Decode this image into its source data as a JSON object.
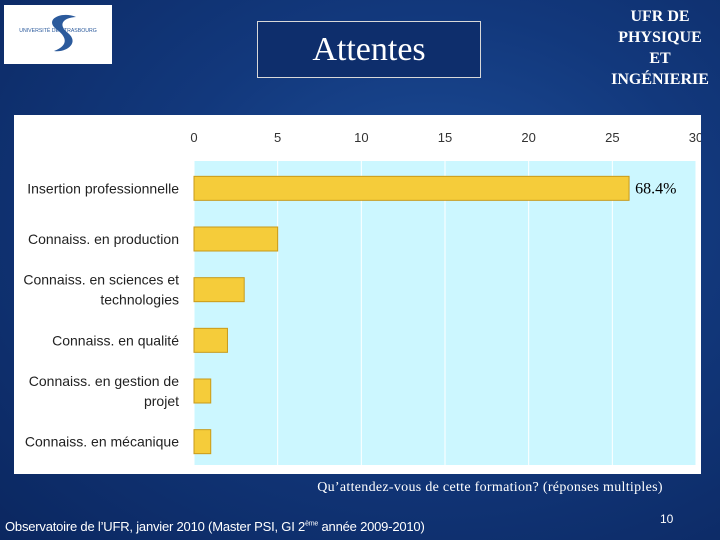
{
  "header": {
    "logo_text": "UNIVERSITÉ DE STRASBOURG",
    "title": "Attentes",
    "ufr_lines": [
      "UFR DE",
      "PHYSIQUE",
      "ET",
      "INGÉNIERIE"
    ]
  },
  "chart_data": {
    "type": "bar",
    "orientation": "horizontal",
    "categories": [
      [
        "Insertion professionnelle"
      ],
      [
        "Connaiss. en production"
      ],
      [
        "Connaiss. en sciences et",
        "technologies"
      ],
      [
        "Connaiss. en qualité"
      ],
      [
        "Connaiss. en gestion de",
        "projet"
      ],
      [
        "Connaiss. en mécanique"
      ]
    ],
    "values": [
      26,
      5,
      3,
      2,
      1,
      1
    ],
    "xlim": [
      0,
      30
    ],
    "xticks": [
      "0",
      "5",
      "10",
      "15",
      "20",
      "25",
      "30"
    ],
    "tick_values": [
      0,
      5,
      10,
      15,
      20,
      25,
      30
    ],
    "annotation": "68.4%",
    "bar_color": "#f5cc3a",
    "plot_bg": "#ccf7ff",
    "grid": true,
    "xaxis_position": "top"
  },
  "caption": "Qu’attendez-vous de cette formation? (réponses multiples)",
  "footer": {
    "text_before": "Observatoire de l’UFR, janvier 2010 (Master PSI, GI 2",
    "superscript": "ème",
    "text_after": " année 2009-2010)"
  },
  "page_number": "10"
}
